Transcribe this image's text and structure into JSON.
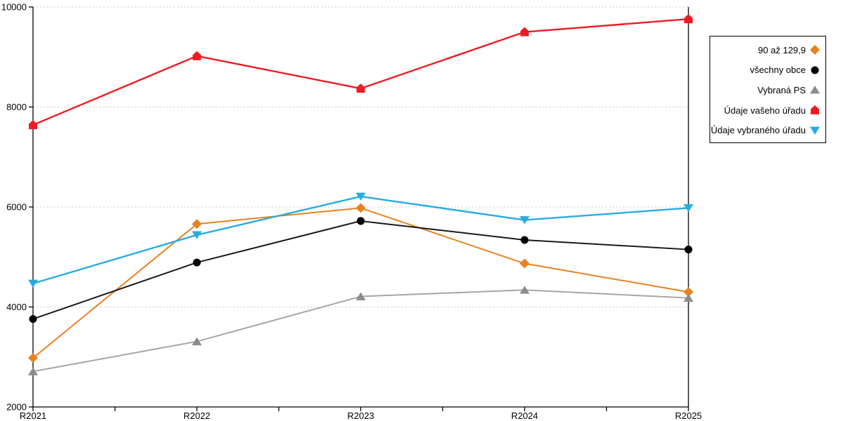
{
  "chart_data": {
    "type": "line",
    "title": "",
    "xlabel": "",
    "ylabel": "",
    "categories": [
      "R2021",
      "R2022",
      "R2023",
      "R2024",
      "R2025"
    ],
    "series": [
      {
        "name": "90 až 129,9",
        "marker": "diamond",
        "color": "#e8821f",
        "values": [
          2980,
          5660,
          5980,
          4870,
          4300
        ]
      },
      {
        "name": "všechny obce",
        "marker": "circle",
        "color": "#000000",
        "line_color": "#1a1a1a",
        "values": [
          3760,
          4890,
          5720,
          5340,
          5150
        ]
      },
      {
        "name": "Vybraná PS",
        "marker": "triangle-up",
        "color": "#8c8c8c",
        "line_color": "#a6a6a6",
        "values": [
          2710,
          3310,
          4210,
          4340,
          4180
        ]
      },
      {
        "name": "Údaje vašeho úřadu",
        "marker": "house-up",
        "color": "#ed1c24",
        "line_width": 2.4,
        "values": [
          7640,
          9020,
          8370,
          9500,
          9760
        ]
      },
      {
        "name": "Údaje vybraného úřadu",
        "marker": "triangle-down",
        "color": "#29abe2",
        "line_width": 2.4,
        "values": [
          4470,
          5440,
          6210,
          5740,
          5980
        ]
      }
    ],
    "ylim": [
      2000,
      10000
    ],
    "y_ticks": [
      2000,
      4000,
      6000,
      8000,
      10000
    ],
    "grid": true,
    "grid_color": "#c9c9c9",
    "axis_color": "#000000",
    "legend_position": "right",
    "minor_x_ticks_at_midpoints": true
  }
}
